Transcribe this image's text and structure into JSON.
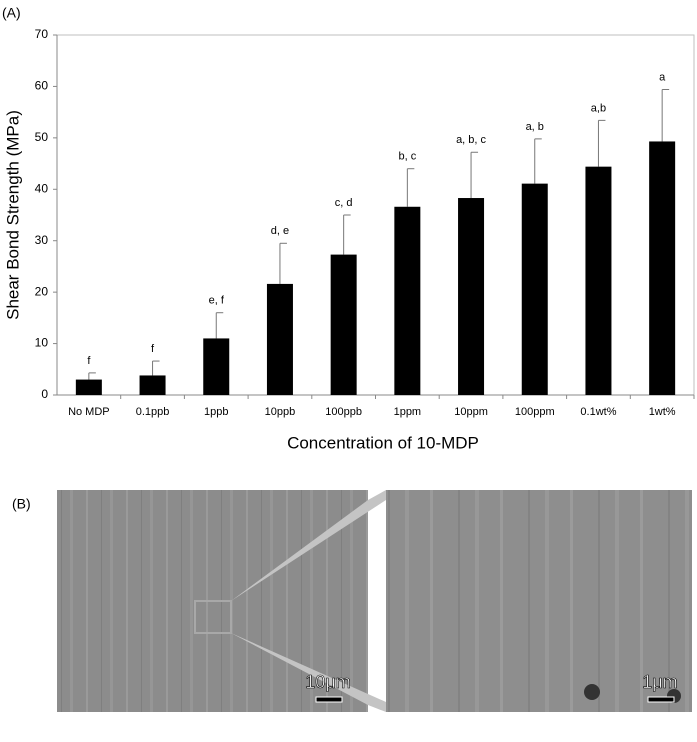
{
  "panel_labels": [
    "(A)",
    "(B)"
  ],
  "chart_data": {
    "type": "bar",
    "xlabel": "Concentration of 10-MDP",
    "ylabel": "Shear Bond Strength (MPa)",
    "categories": [
      "No MDP",
      "0.1ppb",
      "1ppb",
      "10ppb",
      "100ppb",
      "1ppm",
      "10ppm",
      "100ppm",
      "0.1wt%",
      "1wt%"
    ],
    "values": [
      3,
      3.8,
      11,
      21.6,
      27.3,
      36.6,
      38.3,
      41.1,
      44.4,
      49.3
    ],
    "errors": [
      1.3,
      2.8,
      5,
      7.9,
      7.7,
      7.4,
      8.9,
      8.7,
      9,
      10.1
    ],
    "annotations": [
      "f",
      "f",
      "e, f",
      "d, e",
      "c, d",
      "b, c",
      "a, b, c",
      "a, b",
      "a,b",
      "a"
    ],
    "color": "#000000",
    "ylim": [
      0,
      70
    ],
    "yticks": [
      0,
      10,
      20,
      30,
      40,
      50,
      60,
      70
    ],
    "grid": false
  },
  "images": {
    "scale_bars": [
      "10μm",
      "1μm"
    ]
  }
}
